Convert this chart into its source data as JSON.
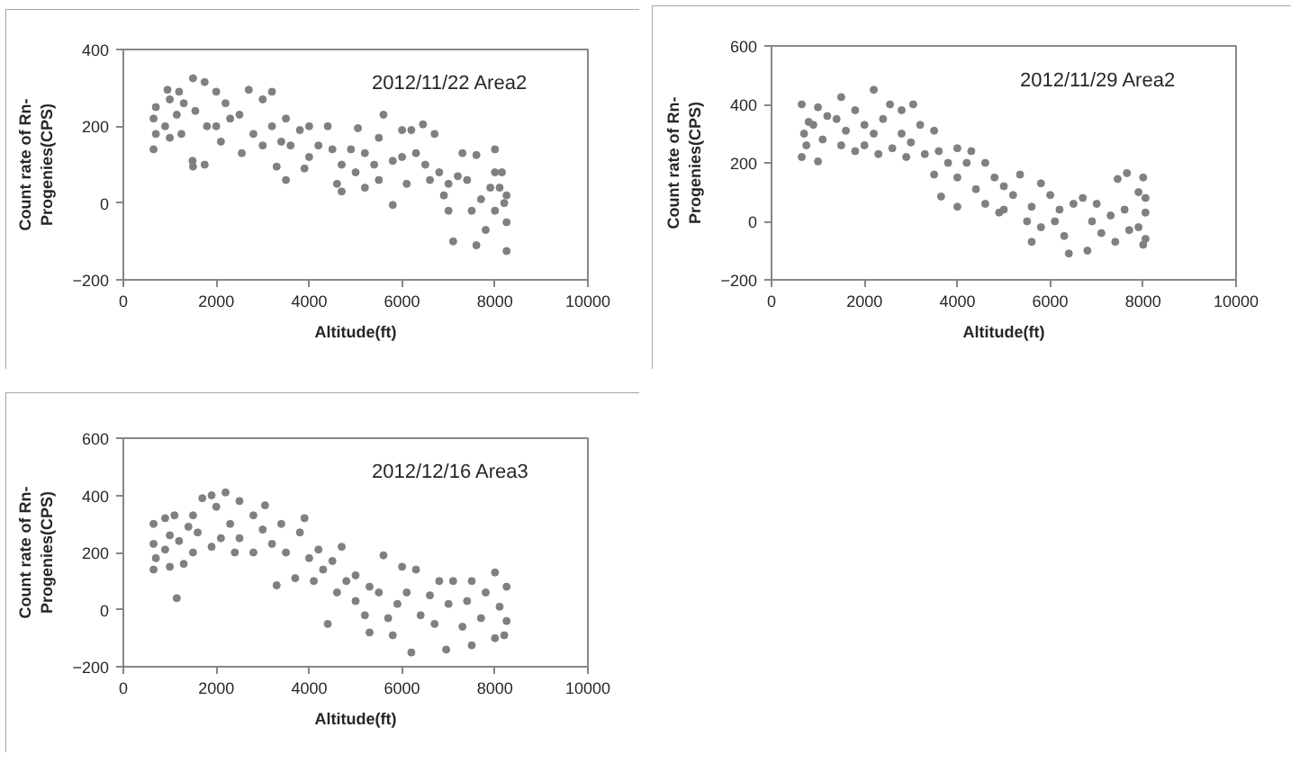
{
  "chart_data": [
    {
      "type": "scatter",
      "xlabel": "Altitude(ft)",
      "ylabel": "Count rate of Rn-Progenies(CPS)",
      "annotations": [
        "2012/11/22 Area2"
      ],
      "color": "#808080",
      "marker": "circle",
      "grid": false,
      "xlim": [
        0,
        10000
      ],
      "xticks": [
        0,
        2000,
        4000,
        6000,
        8000,
        10000
      ],
      "ylim": [
        -200,
        400
      ],
      "yticks": [
        -200,
        0,
        200,
        400
      ],
      "x": [
        650,
        650,
        700,
        700,
        900,
        950,
        1000,
        1000,
        1150,
        1200,
        1250,
        1300,
        1490,
        1500,
        1500,
        1550,
        1750,
        1750,
        1800,
        2000,
        2000,
        2100,
        2200,
        2300,
        2500,
        2550,
        2700,
        2800,
        3000,
        3000,
        3200,
        3200,
        3300,
        3400,
        3500,
        3500,
        3600,
        3800,
        3900,
        4000,
        4000,
        4200,
        4400,
        4500,
        4600,
        4700,
        4700,
        4900,
        5050,
        5000,
        5200,
        5200,
        5400,
        5500,
        5500,
        5600,
        5800,
        5800,
        6000,
        6000,
        6100,
        6200,
        6300,
        6450,
        6500,
        6600,
        6700,
        6800,
        6900,
        7000,
        7000,
        7100,
        7200,
        7300,
        7400,
        7500,
        7600,
        7600,
        7700,
        7800,
        7900,
        8000,
        8000,
        8000,
        8100,
        8150,
        8200,
        8250,
        8250,
        8250
      ],
      "values": [
        140,
        220,
        180,
        250,
        200,
        295,
        270,
        170,
        230,
        290,
        180,
        260,
        110,
        95,
        325,
        240,
        315,
        100,
        200,
        290,
        200,
        160,
        260,
        220,
        230,
        130,
        295,
        180,
        270,
        150,
        290,
        200,
        95,
        160,
        60,
        220,
        150,
        190,
        90,
        120,
        200,
        150,
        200,
        140,
        50,
        100,
        30,
        140,
        195,
        80,
        130,
        40,
        100,
        170,
        60,
        230,
        -5,
        110,
        190,
        120,
        50,
        190,
        130,
        205,
        100,
        60,
        180,
        80,
        20,
        50,
        -20,
        -100,
        70,
        130,
        60,
        -20,
        -110,
        125,
        10,
        -70,
        40,
        140,
        80,
        -20,
        40,
        80,
        0,
        -125,
        -50,
        20
      ]
    },
    {
      "type": "scatter",
      "xlabel": "Altitude(ft)",
      "ylabel": "Count rate of Rn-Progenies(CPS)",
      "annotations": [
        "2012/11/29 Area2"
      ],
      "color": "#808080",
      "marker": "circle",
      "grid": false,
      "xlim": [
        0,
        10000
      ],
      "xticks": [
        0,
        2000,
        4000,
        6000,
        8000,
        10000
      ],
      "ylim": [
        -200,
        600
      ],
      "yticks": [
        -200,
        0,
        200,
        400,
        600
      ],
      "x": [
        650,
        650,
        700,
        750,
        800,
        900,
        1000,
        1000,
        1100,
        1200,
        1400,
        1500,
        1500,
        1600,
        1800,
        1800,
        2000,
        2000,
        2200,
        2200,
        2300,
        2400,
        2550,
        2600,
        2800,
        2800,
        2900,
        3050,
        3000,
        3200,
        3300,
        3500,
        3500,
        3600,
        3650,
        3800,
        4000,
        4000,
        4000,
        4200,
        4300,
        4400,
        4600,
        4600,
        4800,
        4900,
        5000,
        5000,
        5200,
        5350,
        5500,
        5600,
        5600,
        5800,
        5800,
        6000,
        6100,
        6200,
        6300,
        6400,
        6500,
        6700,
        6800,
        6900,
        7000,
        7100,
        7300,
        7450,
        7400,
        7600,
        7650,
        7700,
        7900,
        7900,
        8000,
        8000,
        8050,
        8050,
        8050
      ],
      "values": [
        400,
        220,
        300,
        260,
        340,
        330,
        390,
        205,
        280,
        360,
        350,
        425,
        260,
        310,
        380,
        240,
        330,
        260,
        450,
        300,
        230,
        350,
        400,
        250,
        380,
        300,
        220,
        400,
        270,
        330,
        230,
        310,
        160,
        240,
        85,
        200,
        50,
        250,
        150,
        200,
        240,
        110,
        200,
        60,
        150,
        30,
        120,
        40,
        90,
        160,
        0,
        -70,
        50,
        130,
        -20,
        90,
        0,
        40,
        -50,
        -110,
        60,
        80,
        -100,
        0,
        60,
        -40,
        20,
        145,
        -70,
        40,
        165,
        -30,
        100,
        -20,
        150,
        -80,
        -60,
        30,
        80
      ]
    },
    {
      "type": "scatter",
      "xlabel": "Altitude(ft)",
      "ylabel": "Count rate of Rn-Progenies(CPS)",
      "annotations": [
        "2012/12/16 Area3"
      ],
      "color": "#808080",
      "marker": "circle",
      "grid": false,
      "xlim": [
        0,
        10000
      ],
      "xticks": [
        0,
        2000,
        4000,
        6000,
        8000,
        10000
      ],
      "ylim": [
        -200,
        600
      ],
      "yticks": [
        -200,
        0,
        200,
        400,
        600
      ],
      "x": [
        650,
        650,
        650,
        700,
        900,
        900,
        1000,
        1000,
        1100,
        1150,
        1200,
        1300,
        1400,
        1500,
        1500,
        1600,
        1700,
        1900,
        1900,
        2000,
        2100,
        2200,
        2300,
        2400,
        2500,
        2500,
        2800,
        2800,
        3000,
        3050,
        3200,
        3300,
        3400,
        3500,
        3700,
        3800,
        3900,
        4000,
        4100,
        4200,
        4300,
        4400,
        4500,
        4600,
        4700,
        4800,
        5000,
        5000,
        5200,
        5300,
        5300,
        5500,
        5600,
        5700,
        5800,
        5900,
        6000,
        6100,
        6200,
        6300,
        6400,
        6600,
        6700,
        6800,
        6950,
        7000,
        7100,
        7300,
        7400,
        7500,
        7500,
        7700,
        7800,
        8000,
        8000,
        8100,
        8200,
        8250,
        8250
      ],
      "values": [
        300,
        140,
        230,
        180,
        320,
        210,
        260,
        150,
        330,
        40,
        240,
        160,
        290,
        330,
        200,
        270,
        390,
        400,
        220,
        360,
        250,
        410,
        300,
        200,
        380,
        250,
        330,
        200,
        280,
        365,
        230,
        85,
        300,
        200,
        110,
        270,
        320,
        180,
        100,
        210,
        140,
        -50,
        170,
        60,
        220,
        100,
        30,
        120,
        -20,
        80,
        -80,
        60,
        190,
        -30,
        -90,
        20,
        150,
        60,
        -150,
        140,
        -20,
        50,
        -50,
        100,
        -140,
        20,
        100,
        -60,
        30,
        -125,
        100,
        -30,
        60,
        130,
        -100,
        10,
        -90,
        80,
        -40
      ]
    }
  ]
}
